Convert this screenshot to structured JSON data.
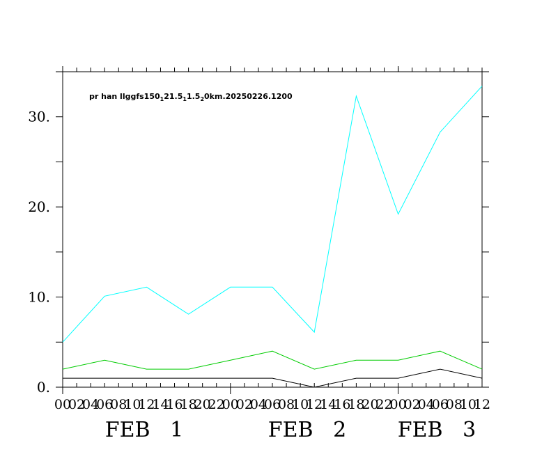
{
  "chart_data": {
    "type": "line",
    "title": "pr han llggfs150_1 21.5_1 1.5_2 0km.20250226.1200",
    "title_parts": {
      "a": "pr han llggfs150",
      "sub1": "1",
      "b": "21.5",
      "sub2": "1",
      "c": "1.5",
      "sub3": "2",
      "d": "0km.20250226.1200"
    },
    "xlabel": "",
    "ylabel": "",
    "x_hours": [
      0,
      6,
      12,
      18,
      24,
      30,
      36,
      42,
      48,
      54,
      60
    ],
    "x_range": [
      0,
      60
    ],
    "ylim": [
      0,
      35
    ],
    "y_tick_labels": [
      "0.",
      "10.",
      "20.",
      "30."
    ],
    "y_tick_values": [
      0,
      10,
      20,
      30
    ],
    "y_minor_step": 5,
    "x_tick_labels": [
      "00",
      "02",
      "04",
      "06",
      "08",
      "10",
      "12",
      "14",
      "16",
      "18",
      "20",
      "22",
      "00",
      "02",
      "04",
      "06",
      "08",
      "10",
      "12",
      "14",
      "16",
      "18",
      "20",
      "22",
      "00",
      "02",
      "04",
      "06",
      "08",
      "10",
      "12"
    ],
    "date_labels": [
      {
        "text": "FEB   1",
        "hour": 0
      },
      {
        "text": "FEB   2",
        "hour": 24
      },
      {
        "text": "FEB   3",
        "hour": 48
      }
    ],
    "series": [
      {
        "color": "#00ffff",
        "values": [
          5.0,
          10.1,
          11.1,
          8.1,
          11.1,
          11.1,
          6.1,
          32.3,
          19.2,
          28.3,
          33.4
        ]
      },
      {
        "color": "#00cc00",
        "values": [
          2.0,
          3.0,
          2.0,
          2.0,
          3.0,
          4.0,
          2.0,
          3.0,
          3.0,
          4.0,
          2.0
        ]
      },
      {
        "color": "#000000",
        "values": [
          1.0,
          1.0,
          1.0,
          1.0,
          1.0,
          1.0,
          0.0,
          1.0,
          1.0,
          2.0,
          1.0
        ]
      }
    ],
    "grid": false,
    "legend": "none"
  }
}
